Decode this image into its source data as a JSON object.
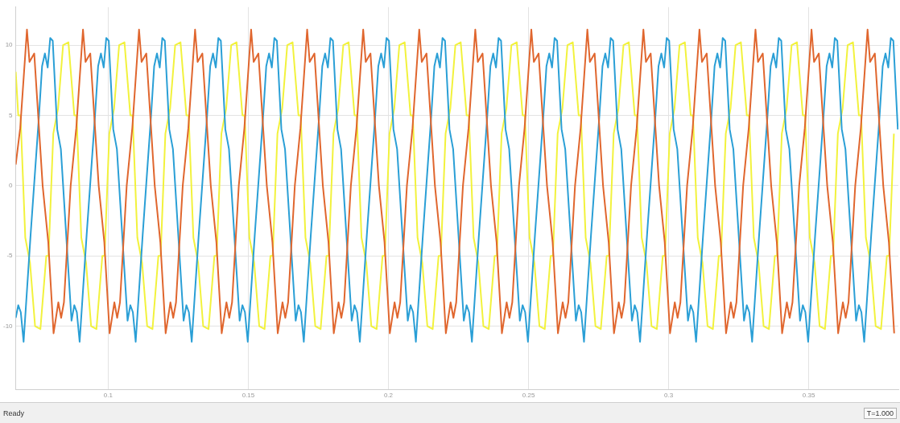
{
  "chart_data": {
    "type": "line",
    "xlim": [
      0.067,
      0.382
    ],
    "xticks": [
      0.1,
      0.15,
      0.2,
      0.25,
      0.3,
      0.35
    ],
    "ylim": [
      -14.5,
      12.7
    ],
    "yticks": [
      -10,
      -5,
      0,
      5,
      10
    ],
    "grid": true,
    "legend": false,
    "marker": "none",
    "line_style": "solid",
    "annotations": [
      "Ready",
      "T=1.000"
    ],
    "series": [
      {
        "color": "#e0662e",
        "x": [
          0.067,
          0.0686,
          0.071,
          0.0719,
          0.0736,
          0.0766,
          0.0786,
          0.0805,
          0.0822,
          0.0832,
          0.0842,
          0.0866,
          0.0886,
          0.091,
          0.0919,
          0.0936,
          0.0966,
          0.0986,
          0.1005,
          0.1022,
          0.1032,
          0.1042,
          0.1066,
          0.1086,
          0.111,
          0.1119,
          0.1136,
          0.1166,
          0.1186,
          0.1205,
          0.1222,
          0.1232,
          0.1242,
          0.1266,
          0.1286,
          0.131,
          0.1319,
          0.1336,
          0.1366,
          0.1386,
          0.1405,
          0.1422,
          0.1432,
          0.1442,
          0.1466,
          0.1486,
          0.151,
          0.1519,
          0.1536,
          0.1566,
          0.1586,
          0.1605,
          0.1622,
          0.1632,
          0.1642,
          0.1666,
          0.1686,
          0.171,
          0.1719,
          0.1736,
          0.1766,
          0.1786,
          0.1805,
          0.1822,
          0.1832,
          0.1842,
          0.1866,
          0.1886,
          0.191,
          0.1919,
          0.1936,
          0.1966,
          0.1986,
          0.2005,
          0.2022,
          0.2032,
          0.2042,
          0.2066,
          0.2086,
          0.211,
          0.2119,
          0.2136,
          0.2166,
          0.2186,
          0.2205,
          0.2222,
          0.2232,
          0.2242,
          0.2266,
          0.2286,
          0.231,
          0.2319,
          0.2336,
          0.2366,
          0.2386,
          0.2405,
          0.2422,
          0.2432,
          0.2442,
          0.2466,
          0.2486,
          0.251,
          0.2519,
          0.2536,
          0.2566,
          0.2586,
          0.2605,
          0.2622,
          0.2632,
          0.2642,
          0.2666,
          0.2686,
          0.271,
          0.2719,
          0.2736,
          0.2766,
          0.2786,
          0.2805,
          0.2822,
          0.2832,
          0.2842,
          0.2866,
          0.2886,
          0.291,
          0.2919,
          0.2936,
          0.2966,
          0.2986,
          0.3005,
          0.3022,
          0.3032,
          0.3042,
          0.3066,
          0.3086,
          0.311,
          0.3119,
          0.3136,
          0.3166,
          0.3186,
          0.3205,
          0.3222,
          0.3232,
          0.3242,
          0.3266,
          0.3286,
          0.331,
          0.3319,
          0.3336,
          0.3366,
          0.3386,
          0.3405,
          0.3422,
          0.3432,
          0.3442,
          0.3466,
          0.3486,
          0.351,
          0.3519,
          0.3536,
          0.3566,
          0.3586,
          0.3605,
          0.3622,
          0.3632,
          0.3642,
          0.3666,
          0.3686,
          0.371,
          0.3719,
          0.3736,
          0.3766,
          0.3786,
          0.3805
        ],
        "values": [
          1.5,
          4.1,
          11.1,
          8.8,
          9.4,
          0,
          -4,
          -10.5,
          -8.3,
          -9.4,
          -8.3,
          0,
          4.1,
          11.1,
          8.8,
          9.4,
          0,
          -4,
          -10.5,
          -8.3,
          -9.4,
          -8.3,
          0,
          4.1,
          11.1,
          8.8,
          9.4,
          0,
          -4,
          -10.5,
          -8.3,
          -9.4,
          -8.3,
          0,
          4.1,
          11.1,
          8.8,
          9.4,
          0,
          -4,
          -10.5,
          -8.3,
          -9.4,
          -8.3,
          0,
          4.1,
          11.1,
          8.8,
          9.4,
          0,
          -4,
          -10.5,
          -8.3,
          -9.4,
          -8.3,
          0,
          4.1,
          11.1,
          8.8,
          9.4,
          0,
          -4,
          -10.5,
          -8.3,
          -9.4,
          -8.3,
          0,
          4.1,
          11.1,
          8.8,
          9.4,
          0,
          -4,
          -10.5,
          -8.3,
          -9.4,
          -8.3,
          0,
          4.1,
          11.1,
          8.8,
          9.4,
          0,
          -4,
          -10.5,
          -8.3,
          -9.4,
          -8.3,
          0,
          4.1,
          11.1,
          8.8,
          9.4,
          0,
          -4,
          -10.5,
          -8.3,
          -9.4,
          -8.3,
          0,
          4.1,
          11.1,
          8.8,
          9.4,
          0,
          -4,
          -10.5,
          -8.3,
          -9.4,
          -8.3,
          0,
          4.1,
          11.1,
          8.8,
          9.4,
          0,
          -4,
          -10.5,
          -8.3,
          -9.4,
          -8.3,
          0,
          4.1,
          11.1,
          8.8,
          9.4,
          0,
          -4,
          -10.5,
          -8.3,
          -9.4,
          -8.3,
          0,
          4.1,
          11.1,
          8.8,
          9.4,
          0,
          -4,
          -10.5,
          -8.3,
          -9.4,
          -8.3,
          0,
          4.1,
          11.1,
          8.8,
          9.4,
          0,
          -4,
          -10.5,
          -8.3,
          -9.4,
          -8.3,
          0,
          4.1,
          11.1,
          8.8,
          9.4,
          0,
          -4,
          -10.5,
          -8.3,
          -9.4,
          -8.3,
          0,
          4.1,
          11.1,
          8.8,
          9.4,
          0,
          -4,
          -10.5
        ]
      },
      {
        "color": "#2a9fd6",
        "x": [
          0.067,
          0.0679,
          0.0688,
          0.0698,
          0.0723,
          0.0753,
          0.0764,
          0.0774,
          0.0784,
          0.0793,
          0.0802,
          0.0818,
          0.0831,
          0.0869,
          0.0879,
          0.0888,
          0.0898,
          0.0923,
          0.0953,
          0.0964,
          0.0974,
          0.0984,
          0.0993,
          0.1002,
          0.1018,
          0.1031,
          0.1069,
          0.1079,
          0.1088,
          0.1098,
          0.1123,
          0.1153,
          0.1164,
          0.1174,
          0.1184,
          0.1193,
          0.1202,
          0.1218,
          0.1231,
          0.1269,
          0.1279,
          0.1288,
          0.1298,
          0.1323,
          0.1353,
          0.1364,
          0.1374,
          0.1384,
          0.1393,
          0.1402,
          0.1418,
          0.1431,
          0.1469,
          0.1479,
          0.1488,
          0.1498,
          0.1523,
          0.1553,
          0.1564,
          0.1574,
          0.1584,
          0.1593,
          0.1602,
          0.1618,
          0.1631,
          0.1669,
          0.1679,
          0.1688,
          0.1698,
          0.1723,
          0.1753,
          0.1764,
          0.1774,
          0.1784,
          0.1793,
          0.1802,
          0.1818,
          0.1831,
          0.1869,
          0.1879,
          0.1888,
          0.1898,
          0.1923,
          0.1953,
          0.1964,
          0.1974,
          0.1984,
          0.1993,
          0.2002,
          0.2018,
          0.2031,
          0.2069,
          0.2079,
          0.2088,
          0.2098,
          0.2123,
          0.2153,
          0.2164,
          0.2174,
          0.2184,
          0.2193,
          0.2202,
          0.2218,
          0.2231,
          0.2269,
          0.2279,
          0.2288,
          0.2298,
          0.2323,
          0.2353,
          0.2364,
          0.2374,
          0.2384,
          0.2393,
          0.2402,
          0.2418,
          0.2431,
          0.2469,
          0.2479,
          0.2488,
          0.2498,
          0.2523,
          0.2553,
          0.2564,
          0.2574,
          0.2584,
          0.2593,
          0.2602,
          0.2618,
          0.2631,
          0.2669,
          0.2679,
          0.2688,
          0.2698,
          0.2723,
          0.2753,
          0.2764,
          0.2774,
          0.2784,
          0.2793,
          0.2802,
          0.2818,
          0.2831,
          0.2869,
          0.2879,
          0.2888,
          0.2898,
          0.2923,
          0.2953,
          0.2964,
          0.2974,
          0.2984,
          0.2993,
          0.3002,
          0.3018,
          0.3031,
          0.3069,
          0.3079,
          0.3088,
          0.3098,
          0.3123,
          0.3153,
          0.3164,
          0.3174,
          0.3184,
          0.3193,
          0.3202,
          0.3218,
          0.3231,
          0.3269,
          0.3279,
          0.3288,
          0.3298,
          0.3323,
          0.3353,
          0.3364,
          0.3374,
          0.3384,
          0.3393,
          0.3402,
          0.3418,
          0.3431,
          0.3469,
          0.3479,
          0.3488,
          0.3498,
          0.3523,
          0.3553,
          0.3564,
          0.3574,
          0.3584,
          0.3593,
          0.3602,
          0.3618,
          0.3631,
          0.3669,
          0.3679,
          0.3688,
          0.3698,
          0.3723,
          0.3753,
          0.3764,
          0.3774,
          0.3784,
          0.3793,
          0.3802,
          0.3818
        ],
        "values": [
          -9.4,
          -8.5,
          -9,
          -11.1,
          -3.5,
          5,
          8.5,
          9.4,
          8.4,
          10.5,
          10.3,
          4,
          2.6,
          -9.6,
          -8.5,
          -9,
          -11.1,
          -3.5,
          5,
          8.5,
          9.4,
          8.4,
          10.5,
          10.3,
          4,
          2.6,
          -9.6,
          -8.5,
          -9,
          -11.1,
          -3.5,
          5,
          8.5,
          9.4,
          8.4,
          10.5,
          10.3,
          4,
          2.6,
          -9.6,
          -8.5,
          -9,
          -11.1,
          -3.5,
          5,
          8.5,
          9.4,
          8.4,
          10.5,
          10.3,
          4,
          2.6,
          -9.6,
          -8.5,
          -9,
          -11.1,
          -3.5,
          5,
          8.5,
          9.4,
          8.4,
          10.5,
          10.3,
          4,
          2.6,
          -9.6,
          -8.5,
          -9,
          -11.1,
          -3.5,
          5,
          8.5,
          9.4,
          8.4,
          10.5,
          10.3,
          4,
          2.6,
          -9.6,
          -8.5,
          -9,
          -11.1,
          -3.5,
          5,
          8.5,
          9.4,
          8.4,
          10.5,
          10.3,
          4,
          2.6,
          -9.6,
          -8.5,
          -9,
          -11.1,
          -3.5,
          5,
          8.5,
          9.4,
          8.4,
          10.5,
          10.3,
          4,
          2.6,
          -9.6,
          -8.5,
          -9,
          -11.1,
          -3.5,
          5,
          8.5,
          9.4,
          8.4,
          10.5,
          10.3,
          4,
          2.6,
          -9.6,
          -8.5,
          -9,
          -11.1,
          -3.5,
          5,
          8.5,
          9.4,
          8.4,
          10.5,
          10.3,
          4,
          2.6,
          -9.6,
          -8.5,
          -9,
          -11.1,
          -3.5,
          5,
          8.5,
          9.4,
          8.4,
          10.5,
          10.3,
          4,
          2.6,
          -9.6,
          -8.5,
          -9,
          -11.1,
          -3.5,
          5,
          8.5,
          9.4,
          8.4,
          10.5,
          10.3,
          4,
          2.6,
          -9.6,
          -8.5,
          -9,
          -11.1,
          -3.5,
          5,
          8.5,
          9.4,
          8.4,
          10.5,
          10.3,
          4,
          2.6,
          -9.6,
          -8.5,
          -9,
          -11.1,
          -3.5,
          5,
          8.5,
          9.4,
          8.4,
          10.5,
          10.3,
          4,
          2.6,
          -9.6,
          -8.5,
          -9,
          -11.1,
          -3.5,
          5,
          8.5,
          9.4,
          8.4,
          10.5,
          10.3,
          4,
          2.6,
          -9.6,
          -8.5,
          -9,
          -11.1,
          -3.5,
          5,
          8.5,
          9.4,
          8.4,
          10.5,
          10.3,
          4
        ]
      },
      {
        "color": "#f2f23c",
        "x": [
          0.067,
          0.0679,
          0.0687,
          0.0704,
          0.0721,
          0.0739,
          0.0758,
          0.0779,
          0.0787,
          0.0804,
          0.0821,
          0.0839,
          0.0858,
          0.0879,
          0.0887,
          0.0904,
          0.0921,
          0.0939,
          0.0958,
          0.0979,
          0.0987,
          0.1004,
          0.1021,
          0.1039,
          0.1058,
          0.1079,
          0.1087,
          0.1104,
          0.1121,
          0.1139,
          0.1158,
          0.1179,
          0.1187,
          0.1204,
          0.1221,
          0.1239,
          0.1258,
          0.1279,
          0.1287,
          0.1304,
          0.1321,
          0.1339,
          0.1358,
          0.1379,
          0.1387,
          0.1404,
          0.1421,
          0.1439,
          0.1458,
          0.1479,
          0.1487,
          0.1504,
          0.1521,
          0.1539,
          0.1558,
          0.1579,
          0.1587,
          0.1604,
          0.1621,
          0.1639,
          0.1658,
          0.1679,
          0.1687,
          0.1704,
          0.1721,
          0.1739,
          0.1758,
          0.1779,
          0.1787,
          0.1804,
          0.1821,
          0.1839,
          0.1858,
          0.1879,
          0.1887,
          0.1904,
          0.1921,
          0.1939,
          0.1958,
          0.1979,
          0.1987,
          0.2004,
          0.2021,
          0.2039,
          0.2058,
          0.2079,
          0.2087,
          0.2104,
          0.2121,
          0.2139,
          0.2158,
          0.2179,
          0.2187,
          0.2204,
          0.2221,
          0.2239,
          0.2258,
          0.2279,
          0.2287,
          0.2304,
          0.2321,
          0.2339,
          0.2358,
          0.2379,
          0.2387,
          0.2404,
          0.2421,
          0.2439,
          0.2458,
          0.2479,
          0.2487,
          0.2504,
          0.2521,
          0.2539,
          0.2558,
          0.2579,
          0.2587,
          0.2604,
          0.2621,
          0.2639,
          0.2658,
          0.2679,
          0.2687,
          0.2704,
          0.2721,
          0.2739,
          0.2758,
          0.2779,
          0.2787,
          0.2804,
          0.2821,
          0.2839,
          0.2858,
          0.2879,
          0.2887,
          0.2904,
          0.2921,
          0.2939,
          0.2958,
          0.2979,
          0.2987,
          0.3004,
          0.3021,
          0.3039,
          0.3058,
          0.3079,
          0.3087,
          0.3104,
          0.3121,
          0.3139,
          0.3158,
          0.3179,
          0.3187,
          0.3204,
          0.3221,
          0.3239,
          0.3258,
          0.3279,
          0.3287,
          0.3304,
          0.3321,
          0.3339,
          0.3358,
          0.3379,
          0.3387,
          0.3404,
          0.3421,
          0.3439,
          0.3458,
          0.3479,
          0.3487,
          0.3504,
          0.3521,
          0.3539,
          0.3558,
          0.3579,
          0.3587,
          0.3604,
          0.3621,
          0.3639,
          0.3658,
          0.3679,
          0.3687,
          0.3704,
          0.3721,
          0.3739,
          0.3758,
          0.3779,
          0.3787,
          0.3804
        ],
        "values": [
          8.1,
          5,
          5,
          -3.7,
          -5.5,
          -10,
          -10.2,
          -5,
          -5,
          3.7,
          5.5,
          10,
          10.2,
          5,
          5,
          -3.7,
          -5.5,
          -10,
          -10.2,
          -5,
          -5,
          3.7,
          5.5,
          10,
          10.2,
          5,
          5,
          -3.7,
          -5.5,
          -10,
          -10.2,
          -5,
          -5,
          3.7,
          5.5,
          10,
          10.2,
          5,
          5,
          -3.7,
          -5.5,
          -10,
          -10.2,
          -5,
          -5,
          3.7,
          5.5,
          10,
          10.2,
          5,
          5,
          -3.7,
          -5.5,
          -10,
          -10.2,
          -5,
          -5,
          3.7,
          5.5,
          10,
          10.2,
          5,
          5,
          -3.7,
          -5.5,
          -10,
          -10.2,
          -5,
          -5,
          3.7,
          5.5,
          10,
          10.2,
          5,
          5,
          -3.7,
          -5.5,
          -10,
          -10.2,
          -5,
          -5,
          3.7,
          5.5,
          10,
          10.2,
          5,
          5,
          -3.7,
          -5.5,
          -10,
          -10.2,
          -5,
          -5,
          3.7,
          5.5,
          10,
          10.2,
          5,
          5,
          -3.7,
          -5.5,
          -10,
          -10.2,
          -5,
          -5,
          3.7,
          5.5,
          10,
          10.2,
          5,
          5,
          -3.7,
          -5.5,
          -10,
          -10.2,
          -5,
          -5,
          3.7,
          5.5,
          10,
          10.2,
          5,
          5,
          -3.7,
          -5.5,
          -10,
          -10.2,
          -5,
          -5,
          3.7,
          5.5,
          10,
          10.2,
          5,
          5,
          -3.7,
          -5.5,
          -10,
          -10.2,
          -5,
          -5,
          3.7,
          5.5,
          10,
          10.2,
          5,
          5,
          -3.7,
          -5.5,
          -10,
          -10.2,
          -5,
          -5,
          3.7,
          5.5,
          10,
          10.2,
          5,
          5,
          -3.7,
          -5.5,
          -10,
          -10.2,
          -5,
          -5,
          3.7,
          5.5,
          10,
          10.2,
          5,
          5,
          -3.7,
          -5.5,
          -10,
          -10.2,
          -5,
          -5,
          3.7,
          5.5,
          10,
          10.2,
          5,
          5,
          -3.7,
          -5.5,
          -10,
          -10.2,
          -5,
          -5,
          3.7
        ]
      }
    ]
  }
}
